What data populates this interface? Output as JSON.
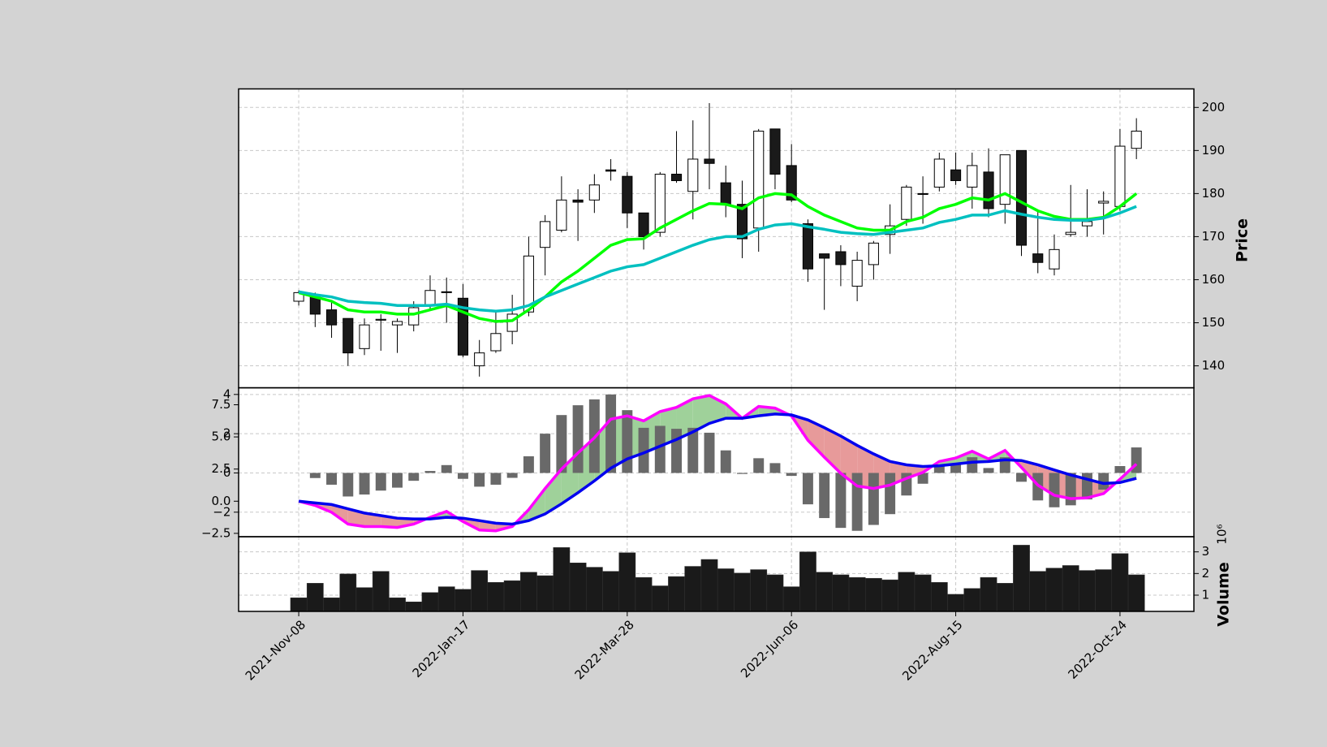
{
  "chart_data": {
    "type": "candlestick",
    "categories": [
      "2021-Nov-08",
      null,
      null,
      null,
      null,
      null,
      null,
      null,
      null,
      null,
      "2022-Jan-17",
      null,
      null,
      null,
      null,
      null,
      null,
      null,
      null,
      null,
      "2022-Mar-28",
      null,
      null,
      null,
      null,
      null,
      null,
      null,
      null,
      null,
      "2022-Jun-06",
      null,
      null,
      null,
      null,
      null,
      null,
      null,
      null,
      null,
      "2022-Aug-15",
      null,
      null,
      null,
      null,
      null,
      null,
      null,
      null,
      null,
      "2022-Oct-24",
      null
    ],
    "grid": true,
    "price": {
      "ylabel": "Price",
      "ylim": [
        134.9,
        204.3
      ],
      "yticks": [
        140,
        150,
        160,
        170,
        180,
        190,
        200
      ],
      "up_color": "#ffffff",
      "down_color": "#1a1a1a",
      "open": [
        155,
        156.5,
        153,
        151,
        144,
        150.6,
        149.5,
        149.5,
        154,
        157.2,
        155.7,
        140,
        143.5,
        148,
        152.5,
        167.5,
        171.5,
        178.5,
        178.5,
        185.5,
        184,
        175.5,
        171,
        184.5,
        180.5,
        188,
        182.5,
        177.5,
        172,
        195,
        186.5,
        173,
        166,
        166.5,
        158.5,
        163.5,
        170.5,
        174,
        180,
        181.5,
        185.5,
        181.5,
        185,
        177.5,
        190,
        166,
        162.5,
        170.5,
        172.5,
        177.8,
        177,
        190.5
      ],
      "high": [
        157.5,
        157,
        155,
        151,
        151,
        152,
        151,
        155,
        161,
        160.5,
        159,
        146,
        153,
        156.5,
        170,
        175,
        184,
        181,
        184.5,
        188,
        185,
        175.5,
        185,
        194.5,
        197,
        201,
        186.5,
        183,
        195,
        195,
        191.5,
        174,
        166,
        168,
        166.5,
        169,
        177.5,
        182,
        184,
        189.5,
        189.5,
        189.5,
        190.5,
        189,
        190,
        176,
        170.5,
        182,
        181,
        180.5,
        195,
        197.5
      ],
      "low": [
        154,
        149,
        146.5,
        140,
        142.5,
        143.5,
        143,
        148,
        153,
        150,
        142,
        137.5,
        143,
        145,
        151.5,
        161,
        171,
        169,
        175.5,
        183,
        172,
        167,
        170,
        182.5,
        174,
        181,
        174.5,
        165,
        166.5,
        181,
        178,
        159.5,
        153,
        158.5,
        155,
        160,
        166,
        172.5,
        173,
        180.5,
        182,
        176.5,
        174.5,
        173,
        165.5,
        161.5,
        161,
        170,
        170,
        170.5,
        176,
        188
      ],
      "close": [
        157,
        152,
        149.5,
        143,
        149.5,
        150.8,
        150.3,
        153.5,
        157.5,
        157,
        142.5,
        143,
        147.5,
        152,
        165.5,
        173.5,
        178.5,
        178,
        182,
        185.2,
        175.5,
        170,
        184.5,
        183,
        188,
        187,
        177.5,
        169.5,
        194.5,
        184.5,
        178.5,
        162.5,
        165,
        163.5,
        164.5,
        168.5,
        172.5,
        181.5,
        179.8,
        188,
        183,
        186.5,
        176.5,
        189,
        168,
        164,
        167,
        171,
        173.5,
        178.2,
        191,
        194.5
      ],
      "mav": [
        {
          "color": "#00ff00",
          "values": [
            157,
            156,
            155,
            153,
            152.5,
            152.5,
            152,
            152,
            153,
            154,
            152.5,
            151,
            150.3,
            150.5,
            153,
            156,
            159.5,
            162,
            165,
            168,
            169.3,
            169.5,
            172,
            174,
            176,
            177.7,
            177.5,
            176.5,
            179,
            180,
            179.7,
            177,
            175,
            173.5,
            172,
            171.5,
            171.5,
            173.5,
            174.5,
            176.5,
            177.5,
            179,
            178.5,
            180,
            178,
            176,
            174.7,
            174,
            174,
            174.5,
            177,
            180
          ]
        },
        {
          "color": "#00c0c0",
          "values": [
            157.2,
            156.5,
            156,
            155,
            154.7,
            154.5,
            154,
            154,
            154,
            154.3,
            153.5,
            153,
            152.7,
            153,
            154,
            156,
            157.5,
            159,
            160.5,
            162,
            163,
            163.5,
            165,
            166.5,
            168,
            169.3,
            170,
            170,
            171.7,
            172.7,
            173,
            172.3,
            171.7,
            171,
            170.7,
            170.5,
            171,
            171.5,
            172,
            173.3,
            174,
            175,
            175,
            176,
            175.2,
            174.5,
            174,
            173.8,
            173.8,
            174.3,
            175.5,
            177
          ]
        }
      ]
    },
    "macd": {
      "ylim": [
        -3.25,
        4.34
      ],
      "yticks": [
        {
          "value": -2,
          "label": "−2"
        },
        0,
        2,
        4
      ],
      "y2lim": [
        -2.76,
        8.82
      ],
      "y2ticks": [
        {
          "value": -2.5,
          "label": "−2.5"
        },
        {
          "value": 0,
          "label": "0.0"
        },
        2.5,
        {
          "value": 5,
          "label": "5.0"
        },
        7.5
      ],
      "histogram": {
        "color": "#696969",
        "values": [
          0,
          -0.26,
          -0.6,
          -1.2,
          -1.1,
          -0.9,
          -0.75,
          -0.4,
          0.1,
          0.4,
          -0.3,
          -0.7,
          -0.6,
          -0.25,
          0.85,
          2.0,
          2.95,
          3.45,
          3.75,
          4.0,
          3.2,
          2.3,
          2.4,
          2.25,
          2.3,
          2.05,
          1.15,
          -0.05,
          0.75,
          0.5,
          -0.15,
          -1.6,
          -2.3,
          -2.8,
          -2.95,
          -2.65,
          -2.1,
          -1.15,
          -0.55,
          0.35,
          0.45,
          0.8,
          0.25,
          0.8,
          -0.45,
          -1.4,
          -1.75,
          -1.65,
          -1.35,
          -0.85,
          0.35,
          1.3
        ]
      },
      "fill_up_color": "#9fd19a",
      "fill_down_color": "#e79a9a",
      "series": [
        {
          "color": "#ff00ff",
          "axis": "y2",
          "values": [
            0,
            -0.33,
            -0.86,
            -1.78,
            -1.97,
            -1.97,
            -2.04,
            -1.78,
            -1.25,
            -0.79,
            -1.58,
            -2.24,
            -2.3,
            -1.97,
            -0.66,
            0.99,
            2.5,
            3.75,
            4.93,
            6.38,
            6.64,
            6.25,
            6.97,
            7.3,
            7.96,
            8.22,
            7.57,
            6.45,
            7.37,
            7.24,
            6.64,
            4.74,
            3.42,
            2.17,
            1.18,
            0.99,
            1.25,
            1.78,
            2.24,
            3.09,
            3.36,
            3.88,
            3.29,
            3.95,
            2.63,
            1.25,
            0.46,
            0.2,
            0.26,
            0.59,
            1.71,
            2.89
          ]
        },
        {
          "color": "#0000ee",
          "axis": "y2",
          "values": [
            0,
            -0.13,
            -0.26,
            -0.59,
            -0.92,
            -1.12,
            -1.32,
            -1.38,
            -1.38,
            -1.25,
            -1.32,
            -1.51,
            -1.71,
            -1.78,
            -1.51,
            -0.99,
            -0.2,
            0.66,
            1.58,
            2.57,
            3.29,
            3.75,
            4.28,
            4.8,
            5.39,
            6.05,
            6.45,
            6.45,
            6.64,
            6.78,
            6.71,
            6.32,
            5.72,
            5.07,
            4.34,
            3.68,
            3.09,
            2.83,
            2.7,
            2.76,
            2.89,
            3.03,
            3.09,
            3.22,
            3.16,
            2.83,
            2.43,
            2.04,
            1.71,
            1.38,
            1.45,
            1.78
          ]
        }
      ]
    },
    "volume": {
      "ylabel": "Volume",
      "offset_label": "10⁶",
      "ylim": [
        0.25,
        3.7
      ],
      "yticks": [
        1,
        2,
        3
      ],
      "color": "#1a1a1a",
      "values": [
        0.88,
        1.55,
        0.88,
        1.98,
        1.35,
        2.1,
        0.88,
        0.69,
        1.12,
        1.39,
        1.27,
        2.14,
        1.59,
        1.67,
        2.06,
        1.9,
        3.2,
        2.49,
        2.29,
        2.1,
        2.96,
        1.82,
        1.43,
        1.86,
        2.33,
        2.65,
        2.22,
        2.02,
        2.18,
        1.94,
        1.39,
        3.0,
        2.06,
        1.94,
        1.82,
        1.78,
        1.71,
        2.06,
        1.94,
        1.59,
        1.04,
        1.31,
        1.82,
        1.55,
        3.31,
        2.1,
        2.25,
        2.37,
        2.14,
        2.18,
        2.92,
        1.94
      ]
    }
  }
}
